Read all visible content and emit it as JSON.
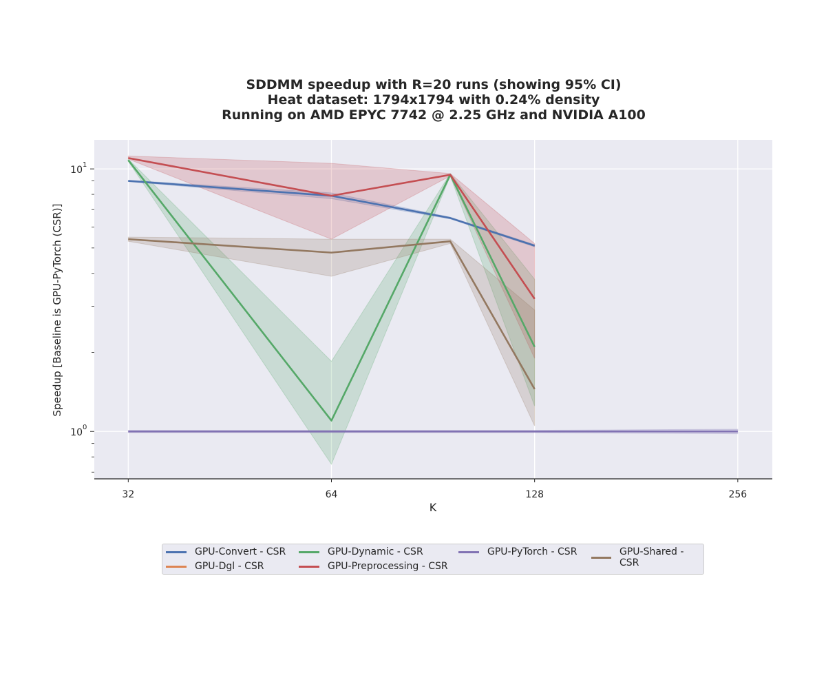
{
  "chart_data": {
    "type": "line",
    "title_lines": [
      "SDDMM speedup with R=20 runs (showing 95% CI)",
      "Heat dataset: 1794x1794 with 0.24% density",
      "Running on AMD EPYC 7742 @ 2.25 GHz and NVIDIA A100"
    ],
    "xlabel": "K",
    "ylabel": "Speedup [Baseline is GPU-PyTorch (CSR)]",
    "x_scale": "log2",
    "y_scale": "log10",
    "x_ticks": [
      32,
      64,
      128,
      256
    ],
    "x_tick_labels": [
      "32",
      "64",
      "128",
      "256"
    ],
    "y_ticks": [
      {
        "value": 1,
        "base": "10",
        "exp": "0"
      },
      {
        "value": 10,
        "base": "10",
        "exp": "1"
      }
    ],
    "xlim": [
      28.5,
      288
    ],
    "ylim": [
      0.66,
      12.9
    ],
    "grid": true,
    "legend_position": "bottom-center",
    "series": [
      {
        "name": "GPU-Convert - CSR",
        "color": "#4c72b0",
        "x": [
          32,
          64,
          96,
          128
        ],
        "y": [
          9.0,
          7.9,
          6.5,
          5.1
        ],
        "ci_low": [
          8.95,
          7.7,
          6.45,
          5.05
        ],
        "ci_high": [
          9.05,
          8.1,
          6.55,
          5.15
        ]
      },
      {
        "name": "GPU-Dgl - CSR",
        "color": "#dd8452",
        "x": [],
        "y": [],
        "ci_low": [],
        "ci_high": []
      },
      {
        "name": "GPU-Dynamic - CSR",
        "color": "#55a868",
        "x": [
          32,
          64,
          96,
          128
        ],
        "y": [
          10.8,
          1.1,
          9.5,
          2.1
        ],
        "ci_low": [
          10.7,
          0.75,
          9.4,
          1.25
        ],
        "ci_high": [
          10.9,
          1.85,
          9.6,
          3.8
        ]
      },
      {
        "name": "GPU-Preprocessing - CSR",
        "color": "#c44e52",
        "x": [
          32,
          64,
          96,
          128
        ],
        "y": [
          11.0,
          7.9,
          9.5,
          3.2
        ],
        "ci_low": [
          10.9,
          5.4,
          9.4,
          1.9
        ],
        "ci_high": [
          11.2,
          10.5,
          9.6,
          5.2
        ]
      },
      {
        "name": "GPU-PyTorch - CSR",
        "color": "#8172b3",
        "x": [
          32,
          64,
          96,
          128,
          256
        ],
        "y": [
          1.0,
          1.0,
          1.0,
          1.0,
          1.0
        ],
        "ci_low": [
          0.99,
          0.99,
          0.99,
          0.99,
          0.98
        ],
        "ci_high": [
          1.01,
          1.01,
          1.01,
          1.01,
          1.02
        ]
      },
      {
        "name": "GPU-Shared - CSR",
        "color": "#937860",
        "x": [
          32,
          64,
          96,
          128
        ],
        "y": [
          5.4,
          4.8,
          5.3,
          1.45
        ],
        "ci_low": [
          5.3,
          3.9,
          5.2,
          1.05
        ],
        "ci_high": [
          5.5,
          5.4,
          5.4,
          2.9
        ]
      }
    ]
  },
  "legend": {
    "items": [
      {
        "label": "GPU-Convert - CSR",
        "color": "#4c72b0"
      },
      {
        "label": "GPU-Dgl - CSR",
        "color": "#dd8452"
      },
      {
        "label": "GPU-Dynamic - CSR",
        "color": "#55a868"
      },
      {
        "label": "GPU-Preprocessing - CSR",
        "color": "#c44e52"
      },
      {
        "label": "GPU-PyTorch - CSR",
        "color": "#8172b3"
      },
      {
        "label": "GPU-Shared - CSR",
        "color": "#937860"
      }
    ]
  }
}
